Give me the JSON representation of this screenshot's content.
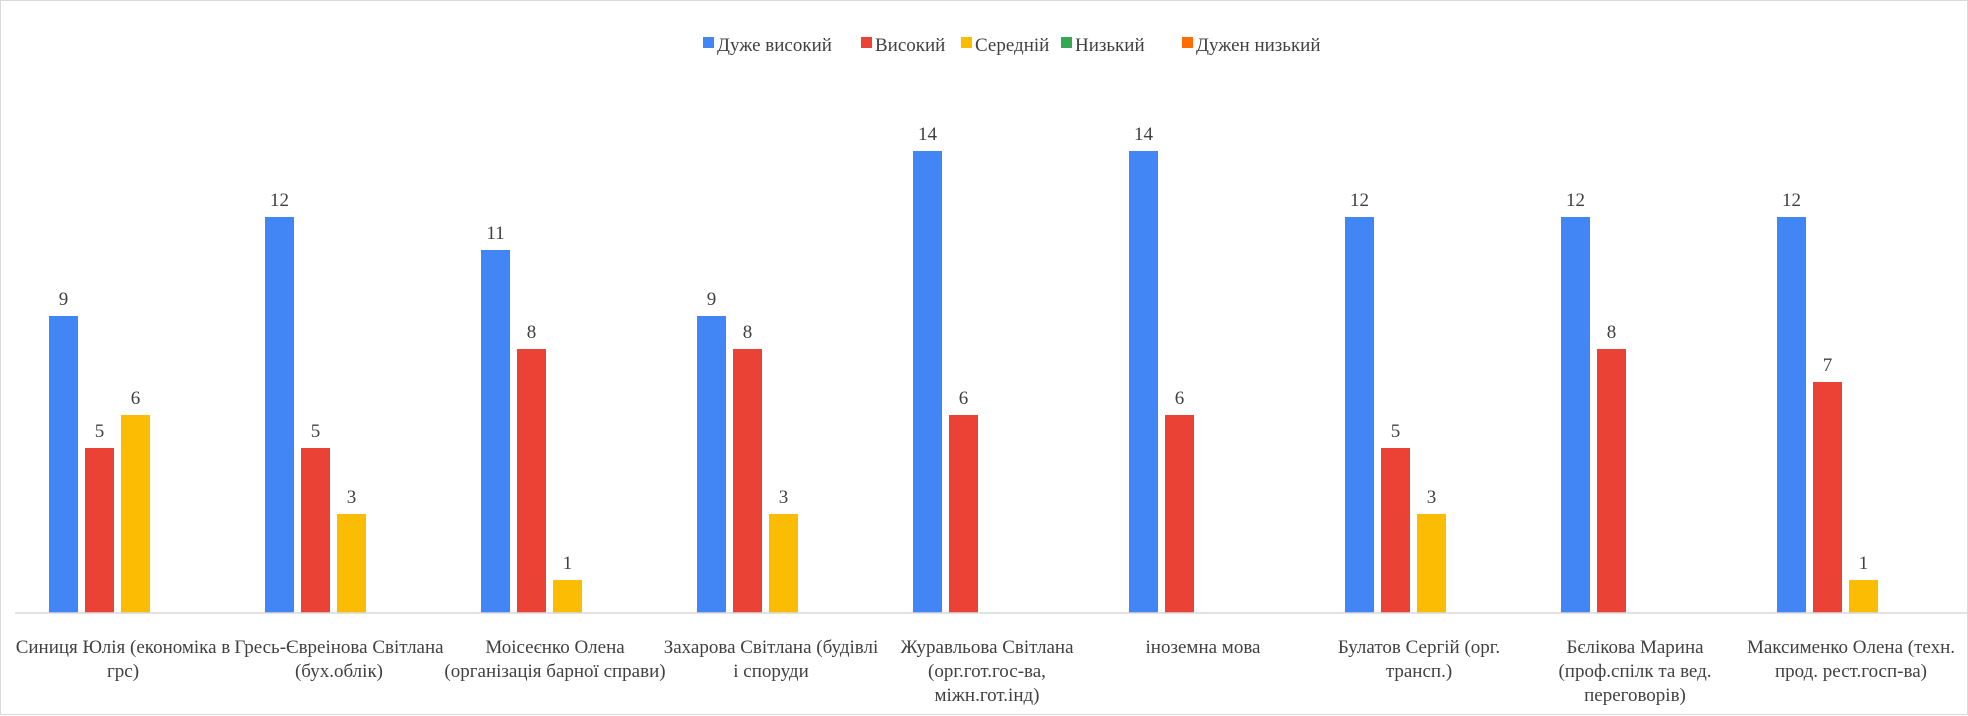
{
  "chart_data": {
    "type": "bar",
    "title": "",
    "xlabel": "",
    "ylabel": "",
    "ylim": [
      0,
      14
    ],
    "grid": false,
    "legend_position": "top",
    "categories": [
      [
        "Синиця Юлія (економіка в",
        "грс)"
      ],
      [
        "Гресь-Євреінова Світлана",
        "(бух.облік)"
      ],
      [
        "Моісеєнко Олена",
        "(організація барної справи)"
      ],
      [
        "Захарова Світлана (будівлі",
        "і споруди"
      ],
      [
        "Журавльова Світлана",
        "(орг.гот.гос-ва,",
        "міжн.гот.інд)"
      ],
      [
        "іноземна мова"
      ],
      [
        "Булатов Сергій (орг.",
        "трансп.)"
      ],
      [
        "Бєлікова Марина",
        "(проф.спілк та вед.",
        "переговорів)"
      ],
      [
        "Максименко Олена (техн.",
        "прод. рест.госп-ва)"
      ]
    ],
    "series": [
      {
        "name": "Дуже високий",
        "color": "#4285F4",
        "values": [
          9,
          12,
          11,
          9,
          14,
          14,
          12,
          12,
          12
        ]
      },
      {
        "name": "Високий",
        "color": "#EA4335",
        "values": [
          5,
          5,
          8,
          8,
          6,
          6,
          5,
          8,
          7
        ]
      },
      {
        "name": "Середній",
        "color": "#FBBC04",
        "values": [
          6,
          3,
          1,
          3,
          null,
          null,
          3,
          null,
          1
        ]
      },
      {
        "name": "Низький",
        "color": "#34A853",
        "values": [
          null,
          null,
          null,
          null,
          null,
          null,
          null,
          null,
          null
        ]
      },
      {
        "name": "Дужен низький",
        "color": "#FF6D01",
        "values": [
          null,
          null,
          null,
          null,
          null,
          null,
          null,
          null,
          null
        ]
      }
    ]
  }
}
